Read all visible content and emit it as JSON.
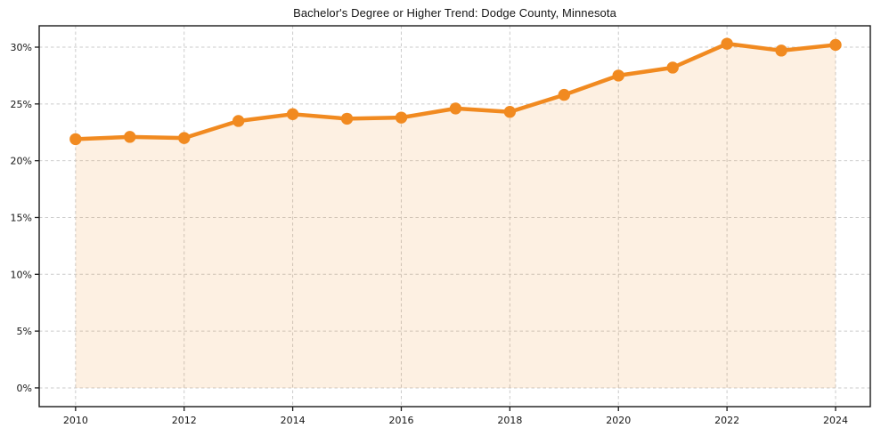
{
  "chart_data": {
    "type": "line",
    "title": "Bachelor's Degree or Higher Trend: Dodge County, Minnesota",
    "xlabel": "",
    "ylabel": "",
    "unit": "%",
    "x": [
      2010,
      2011,
      2012,
      2013,
      2014,
      2015,
      2016,
      2017,
      2018,
      2019,
      2020,
      2021,
      2022,
      2023,
      2024
    ],
    "values": [
      21.9,
      22.1,
      22.0,
      23.5,
      24.1,
      23.7,
      23.8,
      24.6,
      24.3,
      25.8,
      27.5,
      28.2,
      30.3,
      29.7,
      30.2
    ],
    "series_name": "Bachelor's degree or higher (%)",
    "xticks": [
      2010,
      2012,
      2014,
      2016,
      2018,
      2020,
      2022,
      2024
    ],
    "xtick_labels": [
      "2010",
      "2012",
      "2014",
      "2016",
      "2018",
      "2020",
      "2022",
      "2024"
    ],
    "yticks": [
      0,
      5,
      10,
      15,
      20,
      25,
      30
    ],
    "ytick_labels": [
      "0%",
      "5%",
      "10%",
      "15%",
      "20%",
      "25%",
      "30%"
    ],
    "xlim": [
      2009.33,
      2024.64
    ],
    "ylim": [
      -1.65,
      31.88
    ],
    "grid": "both-dashed",
    "legend": "none",
    "marker": "circle",
    "area_fill": true,
    "colors": {
      "line": "#f18a20",
      "marker": "#f18a20",
      "fill_opacity": 0.13,
      "gridline": "#cbcbcb",
      "axis": "#1a1a1a",
      "text": "#151515",
      "background": "#ffffff"
    }
  }
}
